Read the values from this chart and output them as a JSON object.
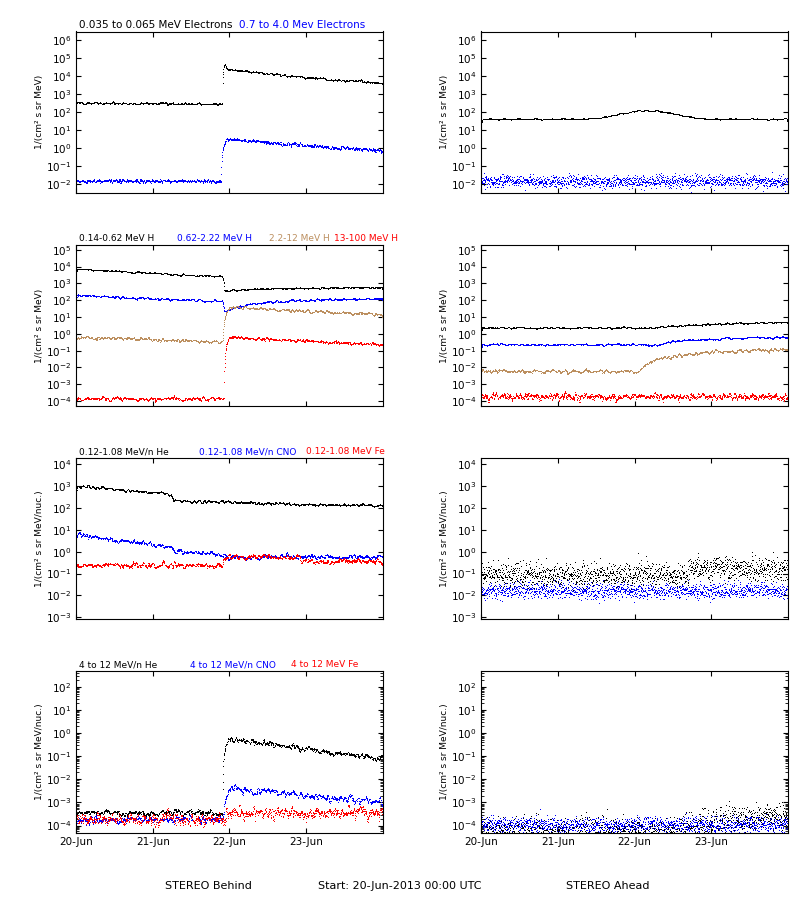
{
  "title_center": "Start: 20-Jun-2013 00:00 UTC",
  "xlabel_left": "STEREO Behind",
  "xlabel_right": "STEREO Ahead",
  "xtick_labels": [
    "20-Jun",
    "21-Jun",
    "22-Jun",
    "23-Jun"
  ],
  "rows": [
    {
      "left_titles": [
        {
          "text": "0.035 to 0.065 MeV Electrons",
          "color": "black"
        },
        {
          "text": "0.7 to 4.0 Mev Electrons",
          "color": "blue"
        }
      ],
      "left_ylim": [
        0.003,
        3000000.0
      ],
      "right_ylim": [
        0.003,
        3000000.0
      ],
      "left_ylabel": "1/(cm² s sr MeV)",
      "right_ylabel": "1/(cm² s sr MeV)"
    },
    {
      "left_titles": [
        {
          "text": "0.14-0.62 MeV H",
          "color": "black"
        },
        {
          "text": "0.62-2.22 MeV H",
          "color": "blue"
        },
        {
          "text": "2.2-12 MeV H",
          "color": "#bc8f5f"
        },
        {
          "text": "13-100 MeV H",
          "color": "red"
        }
      ],
      "left_ylim": [
        5e-05,
        200000.0
      ],
      "right_ylim": [
        5e-05,
        200000.0
      ],
      "left_ylabel": "1/(cm² s sr MeV)",
      "right_ylabel": "1/(cm² s sr MeV)"
    },
    {
      "left_titles": [
        {
          "text": "0.12-1.08 MeV/n He",
          "color": "black"
        },
        {
          "text": "0.12-1.08 MeV/n CNO",
          "color": "blue"
        },
        {
          "text": "0.12-1.08 MeV Fe",
          "color": "red"
        }
      ],
      "left_ylim": [
        0.0008,
        20000.0
      ],
      "right_ylim": [
        0.0008,
        20000.0
      ],
      "left_ylabel": "1/(cm² s sr MeV/nuc.)",
      "right_ylabel": "1/(cm² s sr MeV/nuc.)"
    },
    {
      "left_titles": [
        {
          "text": "4 to 12 MeV/n He",
          "color": "black"
        },
        {
          "text": "4 to 12 MeV/n CNO",
          "color": "blue"
        },
        {
          "text": "4 to 12 MeV Fe",
          "color": "red"
        }
      ],
      "left_ylim": [
        5e-05,
        500.0
      ],
      "right_ylim": [
        5e-05,
        500.0
      ],
      "left_ylabel": "1/(cm² s sr MeV/nuc.)",
      "right_ylabel": "1/(cm² s sr MeV/nuc.)"
    }
  ]
}
